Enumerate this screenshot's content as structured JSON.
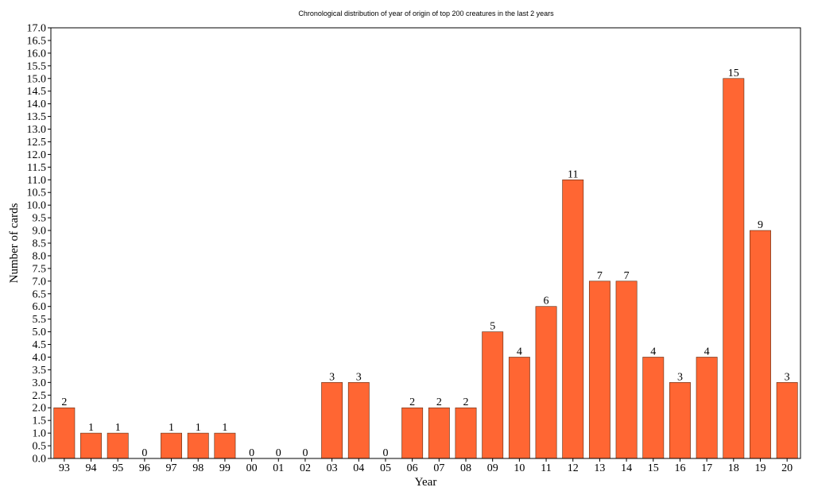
{
  "chart_data": {
    "type": "bar",
    "title": "Chronological distribution of year of origin of top 200 creatures in the last 2 years",
    "xlabel": "Year",
    "ylabel": "Number of cards",
    "ylim": [
      0,
      17
    ],
    "ytick_step": 0.5,
    "grid": false,
    "bar_color": "#ff6633",
    "categories": [
      "93",
      "94",
      "95",
      "96",
      "97",
      "98",
      "99",
      "00",
      "01",
      "02",
      "03",
      "04",
      "05",
      "06",
      "07",
      "08",
      "09",
      "10",
      "11",
      "12",
      "13",
      "14",
      "15",
      "16",
      "17",
      "18",
      "19",
      "20"
    ],
    "values": [
      2,
      1,
      1,
      0,
      1,
      1,
      1,
      0,
      0,
      0,
      3,
      3,
      0,
      2,
      2,
      2,
      5,
      4,
      6,
      11,
      7,
      7,
      4,
      3,
      4,
      15,
      9,
      3
    ]
  }
}
